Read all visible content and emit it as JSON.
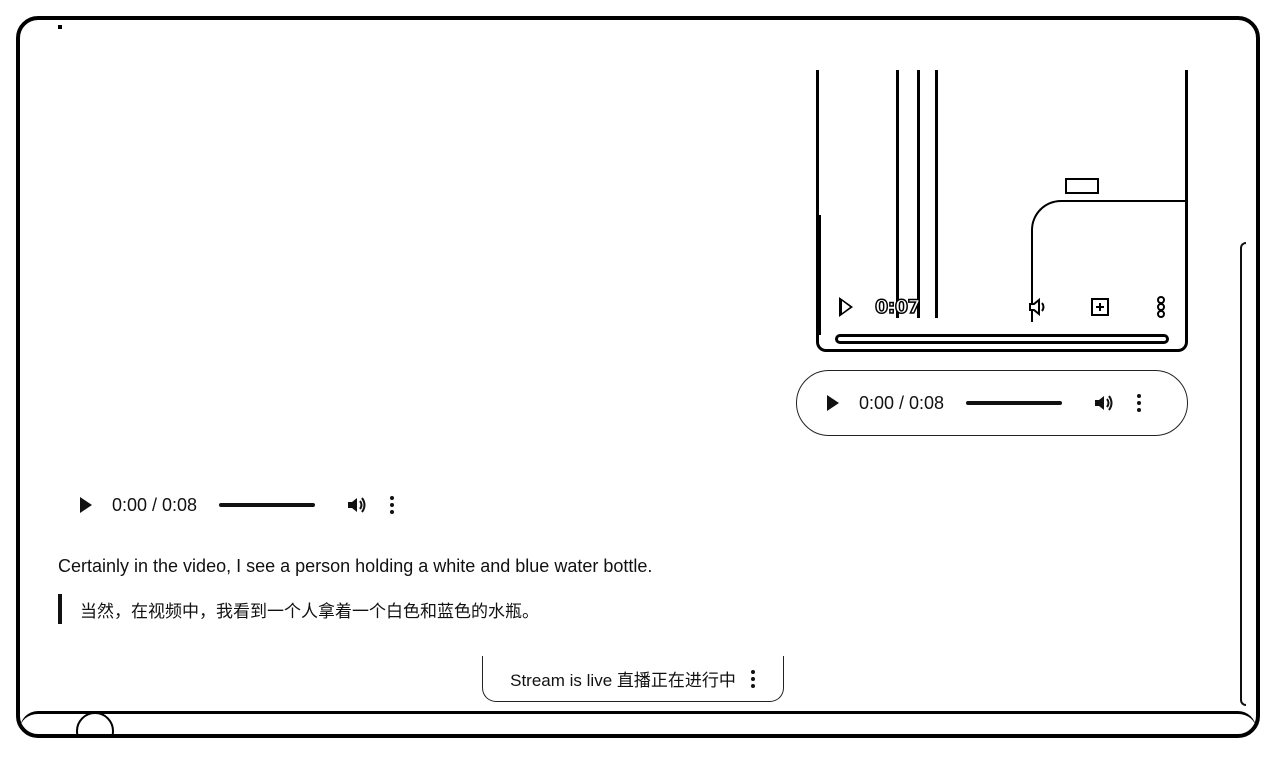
{
  "video_preview": {
    "time": "0:07",
    "icons": {
      "play": "play-icon",
      "volume": "volume-icon",
      "fullscreen": "fullscreen-icon",
      "more": "more-vert-icon"
    }
  },
  "audio_player_top": {
    "time": "0:00 / 0:08"
  },
  "audio_player_main": {
    "time": "0:00 / 0:08"
  },
  "transcript": {
    "english": "Certainly in the video, I see a person holding a white and blue water bottle.",
    "chinese": "当然，在视频中，我看到一个人拿着一个白色和蓝色的水瓶。"
  },
  "stream_status": {
    "label": "Stream is live 直播正在进行中"
  }
}
